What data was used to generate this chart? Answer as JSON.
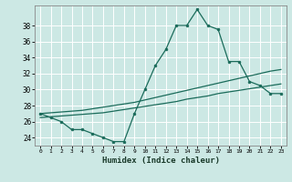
{
  "title": "",
  "xlabel": "Humidex (Indice chaleur)",
  "ylabel": "",
  "bg_color": "#cce8e4",
  "line_color": "#1a6b5a",
  "grid_color": "#ffffff",
  "xlim": [
    -0.5,
    23.5
  ],
  "ylim": [
    23.0,
    40.5
  ],
  "yticks": [
    24,
    26,
    28,
    30,
    32,
    34,
    36,
    38
  ],
  "xticks": [
    0,
    1,
    2,
    3,
    4,
    5,
    6,
    7,
    8,
    9,
    10,
    11,
    12,
    13,
    14,
    15,
    16,
    17,
    18,
    19,
    20,
    21,
    22,
    23
  ],
  "series1": [
    27.0,
    26.5,
    26.0,
    25.0,
    25.0,
    24.5,
    24.0,
    23.5,
    23.5,
    27.0,
    30.0,
    33.0,
    35.0,
    38.0,
    38.0,
    40.0,
    38.0,
    37.5,
    33.5,
    33.5,
    31.0,
    30.5,
    29.5,
    29.5
  ],
  "series2": [
    27.0,
    27.1,
    27.2,
    27.3,
    27.4,
    27.6,
    27.8,
    28.0,
    28.2,
    28.4,
    28.7,
    29.0,
    29.3,
    29.6,
    29.9,
    30.2,
    30.5,
    30.8,
    31.1,
    31.4,
    31.7,
    32.0,
    32.3,
    32.5
  ],
  "series3": [
    26.5,
    26.6,
    26.7,
    26.8,
    26.9,
    27.0,
    27.1,
    27.3,
    27.5,
    27.7,
    27.9,
    28.1,
    28.3,
    28.5,
    28.8,
    29.0,
    29.2,
    29.5,
    29.7,
    29.9,
    30.1,
    30.3,
    30.5,
    30.7
  ]
}
